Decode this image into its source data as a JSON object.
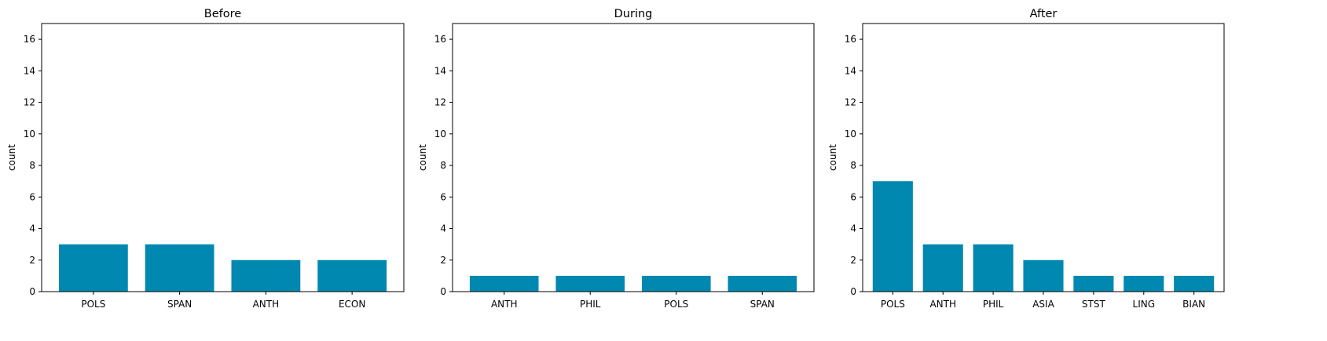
{
  "colors": {
    "bar": "#0088b0"
  },
  "chart_data": [
    {
      "type": "bar",
      "title": "Before",
      "xlabel": "",
      "ylabel": "count",
      "ylim": [
        0,
        17
      ],
      "yticks": [
        0,
        2,
        4,
        6,
        8,
        10,
        12,
        14,
        16
      ],
      "categories": [
        "POLS",
        "SPAN",
        "ANTH",
        "ECON"
      ],
      "values": [
        3,
        3,
        2,
        2
      ]
    },
    {
      "type": "bar",
      "title": "During",
      "xlabel": "",
      "ylabel": "count",
      "ylim": [
        0,
        17
      ],
      "yticks": [
        0,
        2,
        4,
        6,
        8,
        10,
        12,
        14,
        16
      ],
      "categories": [
        "ANTH",
        "PHIL",
        "POLS",
        "SPAN"
      ],
      "values": [
        1,
        1,
        1,
        1
      ]
    },
    {
      "type": "bar",
      "title": "After",
      "xlabel": "",
      "ylabel": "count",
      "ylim": [
        0,
        17
      ],
      "yticks": [
        0,
        2,
        4,
        6,
        8,
        10,
        12,
        14,
        16
      ],
      "categories": [
        "POLS",
        "ANTH",
        "PHIL",
        "ASIA",
        "STST",
        "LING",
        "BIAN"
      ],
      "values": [
        7,
        3,
        3,
        2,
        1,
        1,
        1
      ]
    }
  ]
}
